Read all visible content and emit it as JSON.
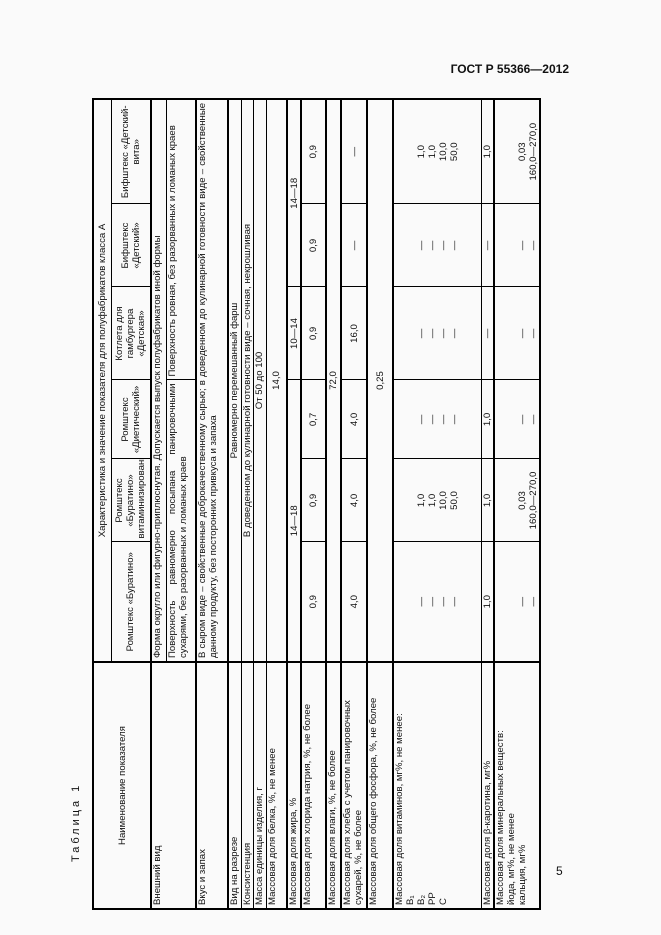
{
  "header": {
    "standard": "ГОСТ Р 55366—2012"
  },
  "page_number": "5",
  "table": {
    "caption": "Таблица 1",
    "col_name_header": "Наименование показателя",
    "group_header": "Характеристика и значение показателя для полуфабрикатов класса А",
    "products": [
      "Ромштекс «Буратино»",
      "Ромштекс «Буратино» витаминизированный»",
      "Ромштекс «Диетический»",
      "Котлета для гамбургера «Детская»",
      "Бифштекс «Детский»",
      "Бифштекс «Детский-вита»"
    ],
    "rows": {
      "appearance": {
        "name": "Внешний вид",
        "shape": "Форма округло или фигурно-приплюснутая. Допускается выпуск полуфабрикатов иной формы",
        "surface_a": "Поверхность равномерно посыпана панировочными сухарями, без разорванных и ломаных краев",
        "surface_b": "Поверхность ровная, без разорванных и ломаных краев"
      },
      "taste": {
        "name": "Вкус и запах",
        "value": "В сыром виде – свойственные доброкачественному сырью; в доведенном до кулинарной готовности виде – свойственные данному продукту, без посторонних привкуса и запаха"
      },
      "cut": {
        "name": "Вид на разрезе",
        "value": "Равномерно перемешанный фарш"
      },
      "consistency": {
        "name": "Консистенция",
        "value": "В доведенном до кулинарной готовности виде – сочная, некрошливая"
      },
      "unit_mass": {
        "name": "Масса единицы изделия, г",
        "value": "От 50 до 100"
      },
      "protein": {
        "name": "Массовая доля белка, %, не менее",
        "value": "14,0"
      },
      "fat": {
        "name": "Массовая доля жира, %",
        "values": [
          "14—18",
          "10—14",
          "14—18"
        ]
      },
      "sodium": {
        "name": "Массовая доля хлорида натрия, %, не более",
        "values": [
          "0,9",
          "0,9",
          "0,7",
          "0,9",
          "0,9",
          "0,9"
        ]
      },
      "moisture": {
        "name": "Массовая доля влаги, %, не более",
        "value": "72,0"
      },
      "bread": {
        "name": "Массовая доля хлеба с учетом панировочных сухарей, %, не более",
        "values": [
          "4,0",
          "4,0",
          "4,0",
          "16,0",
          "—",
          "—"
        ]
      },
      "phosphorus": {
        "name": "Массовая доля общего фосфора, %, не более",
        "value": "0,25"
      },
      "vitamins": {
        "name": "Массовая доля витаминов, мг%, не менее:\nB₁\nB₂\nPP\nC",
        "values": [
          "\n\n—\n—\n—\n—",
          "\n\n1,0\n1,0\n10,0\n50,0",
          "\n\n—\n—\n—\n—",
          "\n\n—\n—\n—\n—",
          "\n\n—\n—\n—\n—",
          "\n\n1,0\n1,0\n10,0\n50,0"
        ]
      },
      "carotene": {
        "name": "Массовая доля β-каротина, мг%",
        "values": [
          "1,0",
          "1,0",
          "1,0",
          "—",
          "—",
          "1,0"
        ]
      },
      "minerals": {
        "name": "Массовая доля минеральных веществ:\nйода, мг%, не менее\nкальция, мг%",
        "values": [
          "\n\n—\n—",
          "\n\n0,03\n160,0—270,0",
          "\n\n—\n—",
          "\n\n—\n—",
          "\n\n—\n—",
          "\n\n0,03\n160,0—270,0"
        ]
      }
    }
  }
}
